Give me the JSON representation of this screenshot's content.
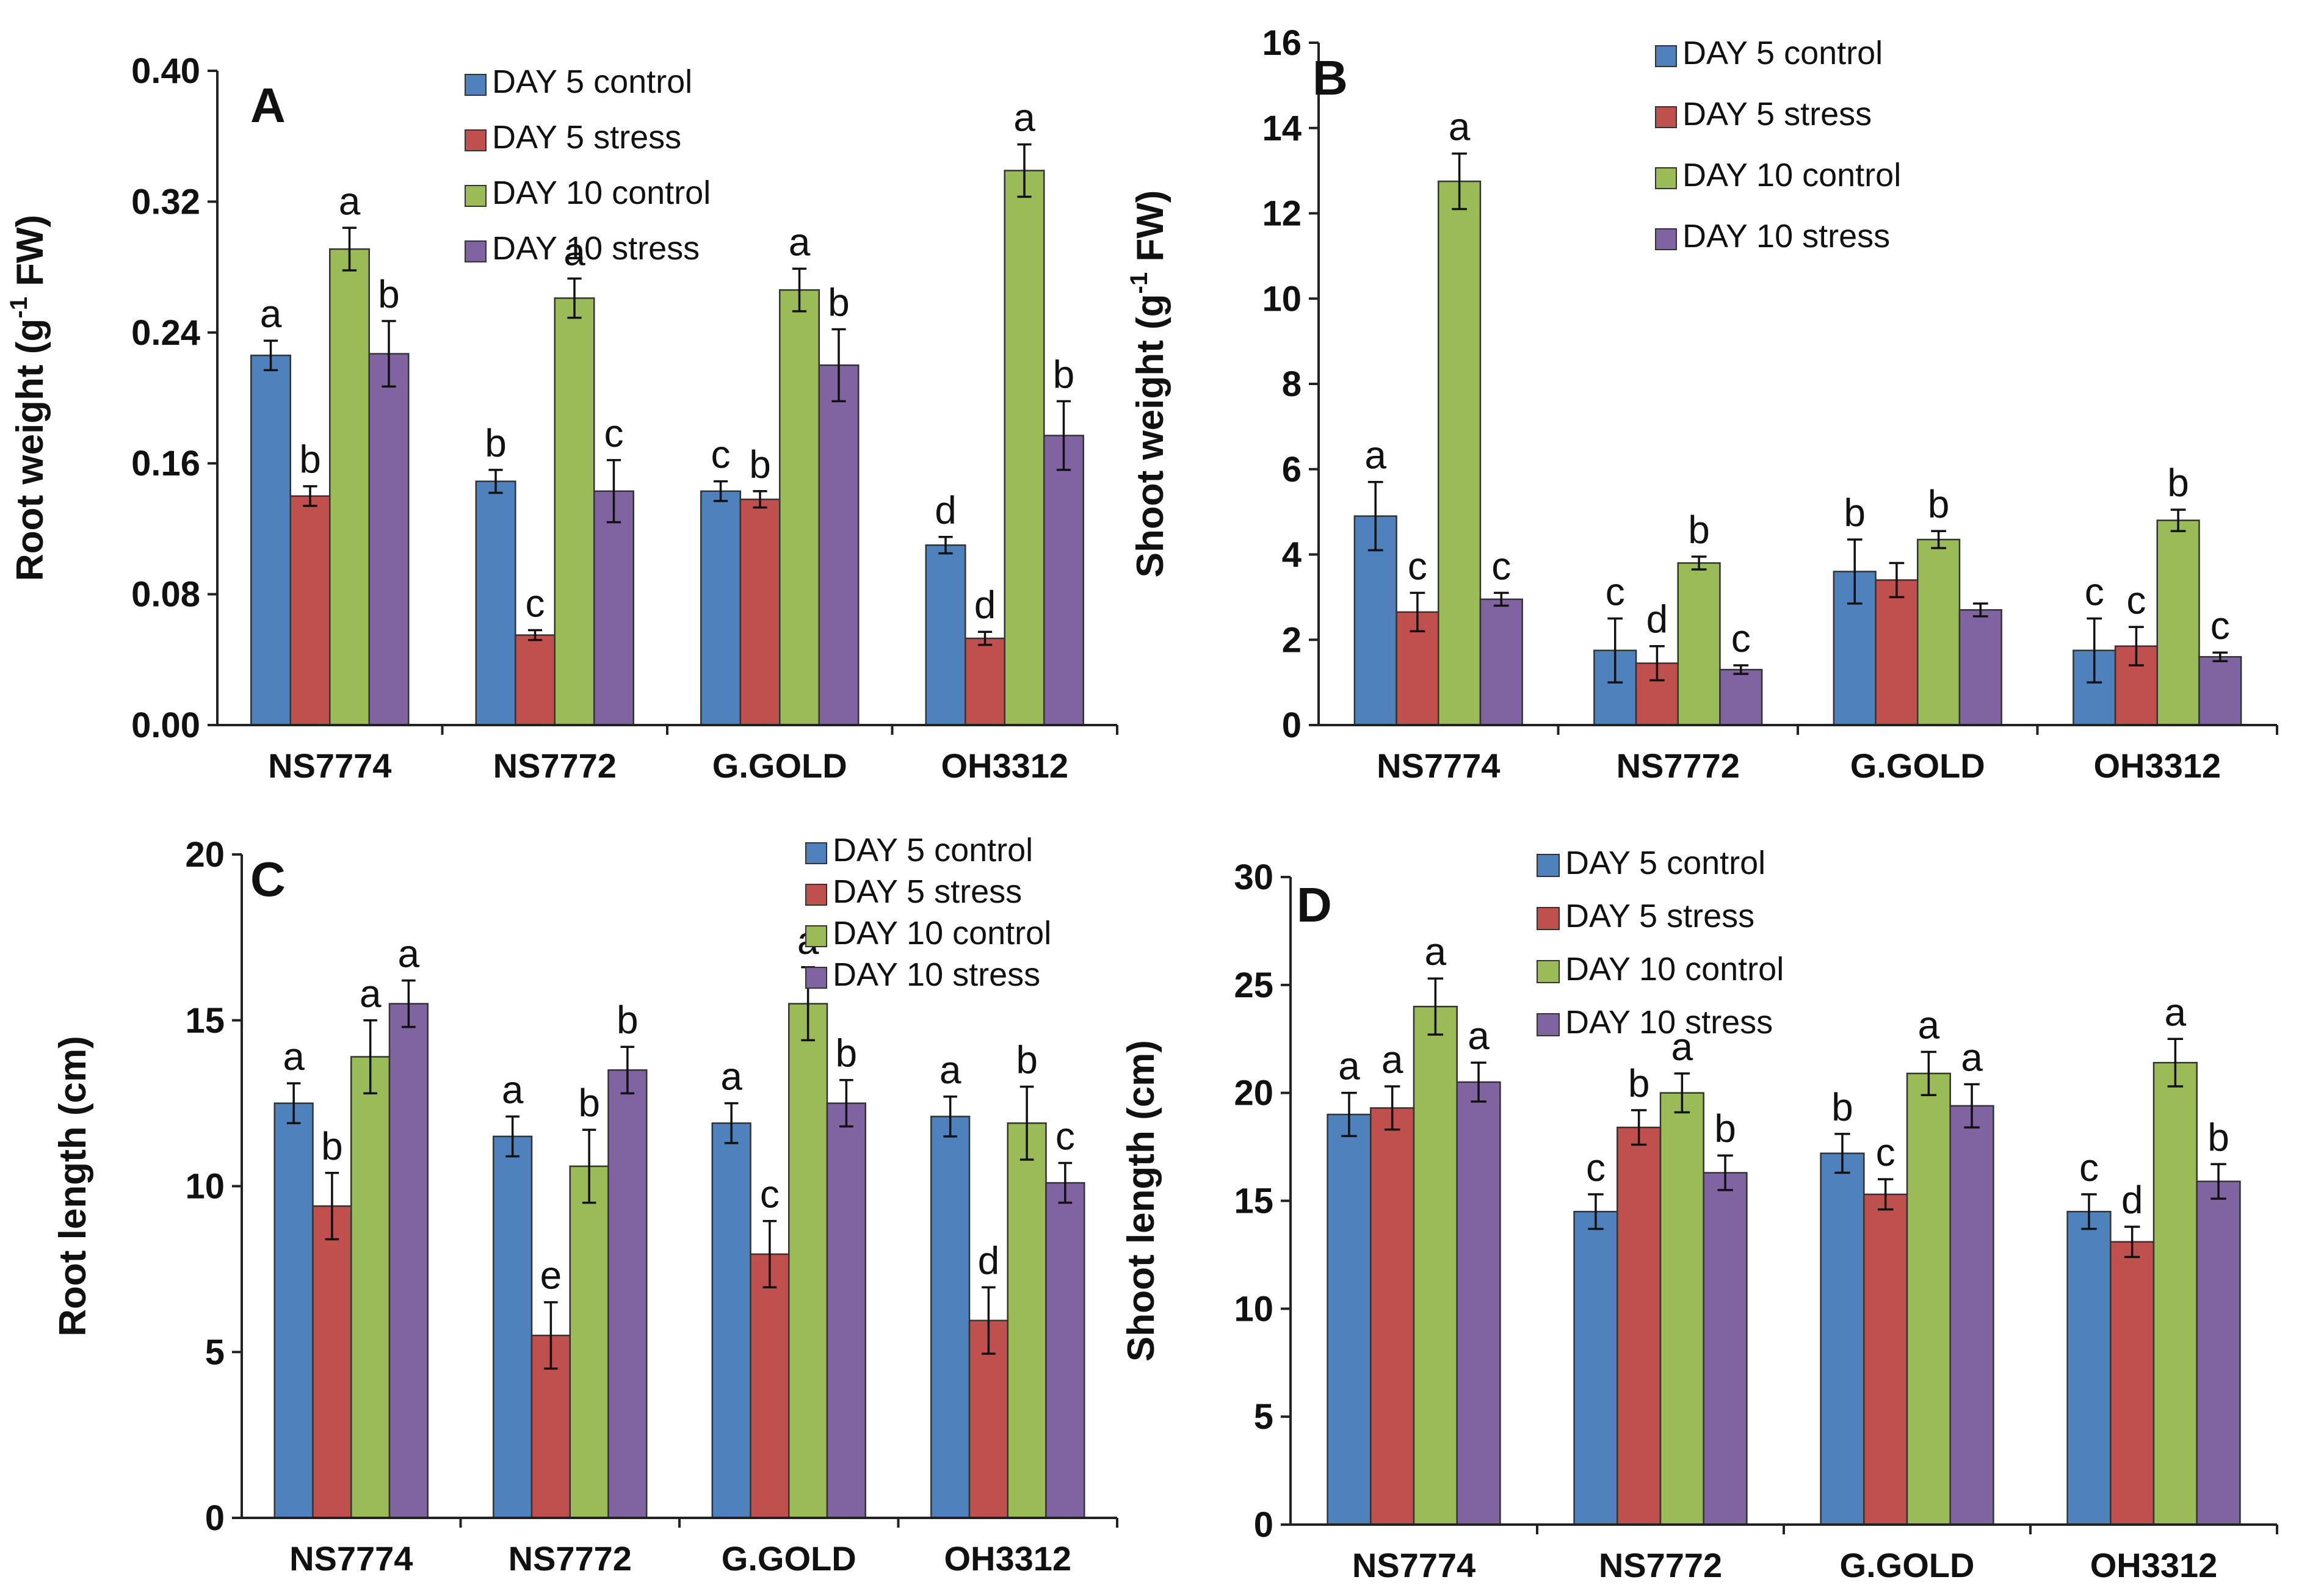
{
  "chart_data": [
    {
      "type": "bar",
      "panel": "A",
      "title": "",
      "xlabel": "",
      "ylabel": "Root weight (g-1 FW)",
      "ylabel_parts": {
        "main": "Root weight (g",
        "sup": "-1",
        "tail": " FW)"
      },
      "ylim": [
        0,
        0.4
      ],
      "yticks": [
        "0.00",
        "0.08",
        "0.16",
        "0.24",
        "0.32",
        "0.40"
      ],
      "categories": [
        "NS7774",
        "NS7772",
        "G.GOLD",
        "OH3312"
      ],
      "series": [
        {
          "name": "DAY 5 control",
          "values": [
            0.226,
            0.149,
            0.143,
            0.11
          ],
          "errors": [
            0.009,
            0.007,
            0.006,
            0.005
          ],
          "letters": [
            "a",
            "b",
            "c",
            "d"
          ]
        },
        {
          "name": "DAY 5 stress",
          "values": [
            0.14,
            0.055,
            0.138,
            0.053
          ],
          "errors": [
            0.006,
            0.003,
            0.005,
            0.004
          ],
          "letters": [
            "b",
            "c",
            "b",
            "d"
          ]
        },
        {
          "name": "DAY 10 control",
          "values": [
            0.291,
            0.261,
            0.266,
            0.339
          ],
          "errors": [
            0.013,
            0.012,
            0.013,
            0.016
          ],
          "letters": [
            "a",
            "a",
            "a",
            "a"
          ]
        },
        {
          "name": "DAY 10 stress",
          "values": [
            0.227,
            0.143,
            0.22,
            0.177
          ],
          "errors": [
            0.02,
            0.019,
            0.022,
            0.021
          ],
          "letters": [
            "b",
            "c",
            "b",
            "b"
          ]
        }
      ]
    },
    {
      "type": "bar",
      "panel": "B",
      "title": "",
      "xlabel": "",
      "ylabel": "Shoot weight (g-1 FW)",
      "ylabel_parts": {
        "main": "Shoot weight (g",
        "sup": "-1",
        "tail": " FW)"
      },
      "ylim": [
        0,
        16
      ],
      "yticks": [
        "0",
        "2",
        "4",
        "6",
        "8",
        "10",
        "12",
        "14",
        "16"
      ],
      "categories": [
        "NS7774",
        "NS7772",
        "G.GOLD",
        "OH3312"
      ],
      "series": [
        {
          "name": "DAY 5 control",
          "values": [
            4.9,
            1.75,
            3.6,
            1.75
          ],
          "errors": [
            0.8,
            0.75,
            0.75,
            0.75
          ],
          "letters": [
            "a",
            "c",
            "b",
            "c"
          ]
        },
        {
          "name": "DAY 5 stress",
          "values": [
            2.65,
            1.45,
            3.4,
            1.85
          ],
          "errors": [
            0.45,
            0.4,
            0.4,
            0.45
          ],
          "letters": [
            "c",
            "d",
            "",
            "c"
          ]
        },
        {
          "name": "DAY 10 control",
          "values": [
            12.75,
            3.8,
            4.35,
            4.8
          ],
          "errors": [
            0.65,
            0.15,
            0.2,
            0.25
          ],
          "letters": [
            "a",
            "b",
            "b",
            "b"
          ]
        },
        {
          "name": "DAY 10 stress",
          "values": [
            2.95,
            1.3,
            2.7,
            1.6
          ],
          "errors": [
            0.15,
            0.1,
            0.15,
            0.1
          ],
          "letters": [
            "c",
            "c",
            "",
            "c"
          ]
        }
      ]
    },
    {
      "type": "bar",
      "panel": "C",
      "title": "",
      "xlabel": "",
      "ylabel": "Root length (cm)",
      "ylim": [
        0,
        20
      ],
      "yticks": [
        "0",
        "5",
        "10",
        "15",
        "20"
      ],
      "categories": [
        "NS7774",
        "NS7772",
        "G.GOLD",
        "OH3312"
      ],
      "series": [
        {
          "name": "DAY 5 control",
          "values": [
            12.5,
            11.5,
            11.9,
            12.1
          ],
          "errors": [
            0.6,
            0.6,
            0.6,
            0.6
          ],
          "letters": [
            "a",
            "a",
            "a",
            "a"
          ]
        },
        {
          "name": "DAY 5 stress",
          "values": [
            9.4,
            5.5,
            7.95,
            5.95
          ],
          "errors": [
            1.0,
            1.0,
            1.0,
            1.0
          ],
          "letters": [
            "b",
            "e",
            "c",
            "d"
          ]
        },
        {
          "name": "DAY 10 control",
          "values": [
            13.9,
            10.6,
            15.5,
            11.9
          ],
          "errors": [
            1.1,
            1.1,
            1.1,
            1.1
          ],
          "letters": [
            "a",
            "b",
            "a",
            "b"
          ]
        },
        {
          "name": "DAY 10 stress",
          "values": [
            15.5,
            13.5,
            12.5,
            10.1
          ],
          "errors": [
            0.7,
            0.7,
            0.7,
            0.6
          ],
          "letters": [
            "a",
            "b",
            "b",
            "c"
          ]
        }
      ]
    },
    {
      "type": "bar",
      "panel": "D",
      "title": "",
      "xlabel": "",
      "ylabel": "Shoot length (cm)",
      "ylim": [
        0,
        30
      ],
      "yticks": [
        "0",
        "5",
        "10",
        "15",
        "20",
        "25",
        "30"
      ],
      "categories": [
        "NS7774",
        "NS7772",
        "G.GOLD",
        "OH3312"
      ],
      "series": [
        {
          "name": "DAY 5 control",
          "values": [
            19.0,
            14.5,
            17.2,
            14.5
          ],
          "errors": [
            1.0,
            0.8,
            0.9,
            0.8
          ],
          "letters": [
            "a",
            "c",
            "b",
            "c"
          ]
        },
        {
          "name": "DAY 5 stress",
          "values": [
            19.3,
            18.4,
            15.3,
            13.1
          ],
          "errors": [
            1.0,
            0.8,
            0.7,
            0.7
          ],
          "letters": [
            "a",
            "b",
            "c",
            "d"
          ]
        },
        {
          "name": "DAY 10 control",
          "values": [
            24.0,
            20.0,
            20.9,
            21.4
          ],
          "errors": [
            1.3,
            0.9,
            1.0,
            1.1
          ],
          "letters": [
            "a",
            "a",
            "a",
            "a"
          ]
        },
        {
          "name": "DAY 10 stress",
          "values": [
            20.5,
            16.3,
            19.4,
            15.9
          ],
          "errors": [
            0.9,
            0.8,
            1.0,
            0.8
          ],
          "letters": [
            "a",
            "b",
            "a",
            "b"
          ]
        }
      ]
    }
  ],
  "colors": {
    "DAY 5 control": "#4f81bd",
    "DAY 5 stress": "#c0504d",
    "DAY 10 control": "#9bbb59",
    "DAY 10 stress": "#8064a2"
  }
}
